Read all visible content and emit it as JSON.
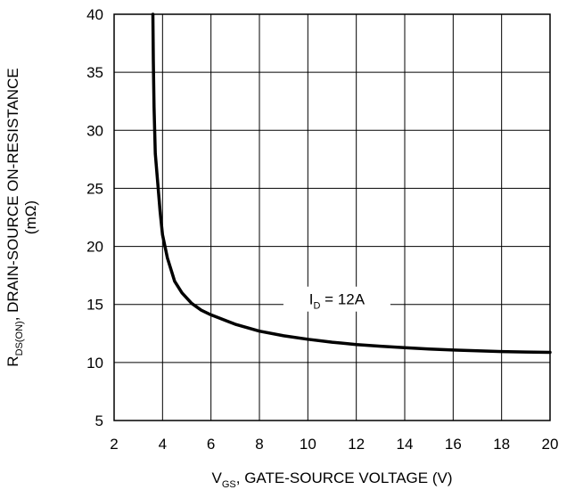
{
  "chart_data": {
    "type": "line",
    "xlabel": {
      "main": "V",
      "sub": "GS",
      "rest": ", GATE-SOURCE VOLTAGE (V)"
    },
    "ylabel": {
      "main": "R",
      "sub": "DS(ON)",
      "rest": ", DRAIN-SOURCE ON-RESISTANCE",
      "line2": "(mΩ)"
    },
    "xlim": [
      2,
      20
    ],
    "ylim": [
      5,
      40
    ],
    "x_ticks": [
      "2",
      "4",
      "6",
      "8",
      "10",
      "12",
      "14",
      "16",
      "18",
      "20"
    ],
    "y_ticks": [
      "5",
      "10",
      "15",
      "20",
      "25",
      "30",
      "35",
      "40"
    ],
    "grid": true,
    "series": [
      {
        "x": [
          3.6,
          3.62,
          3.65,
          3.7,
          3.8,
          3.9,
          4.0,
          4.2,
          4.5,
          4.8,
          5.2,
          5.6,
          6.0,
          7.0,
          8.0,
          9.0,
          10.0,
          11.0,
          12.0,
          13.0,
          14.0,
          15.0,
          16.0,
          17.0,
          18.0,
          19.0,
          20.0
        ],
        "y": [
          40,
          36,
          32,
          28,
          25.5,
          23,
          21,
          19,
          17,
          16,
          15.1,
          14.5,
          14.1,
          13.3,
          12.7,
          12.3,
          12.0,
          11.75,
          11.55,
          11.4,
          11.27,
          11.16,
          11.07,
          11.0,
          10.94,
          10.9,
          10.87
        ]
      }
    ],
    "annotation": {
      "main": "I",
      "sub": "D",
      "rest": " = 12A",
      "x": 11.2,
      "y": 15
    }
  }
}
